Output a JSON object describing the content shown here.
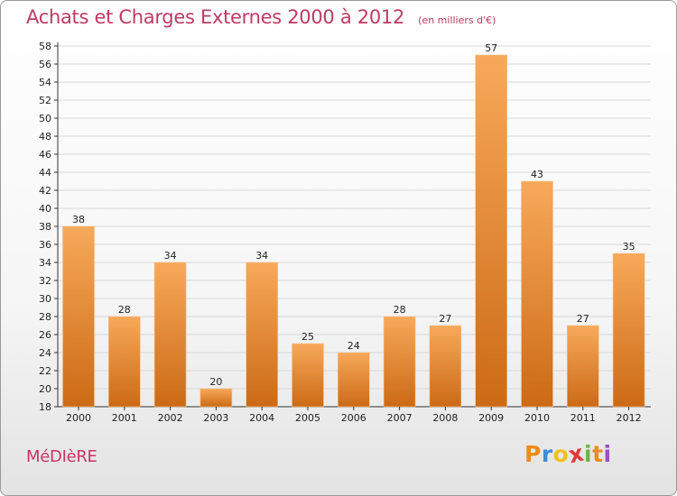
{
  "header": {
    "title": "Achats et Charges Externes 2000 à 2012",
    "subtitle": "(en milliers d'€)"
  },
  "footer": {
    "commune": "MéDIèRE",
    "logo_letters": [
      "P",
      "r",
      "o",
      "x",
      "i",
      "t",
      "i"
    ],
    "logo_colors": [
      "#f08a1c",
      "#3a8fd8",
      "#f0c020",
      "#e03a3a",
      "#6ab843",
      "#f08a1c",
      "#9b4fc4"
    ]
  },
  "colors": {
    "bar_top": "#f7a95a",
    "bar_bottom": "#cc6a15",
    "axis": "#333333",
    "grid": "#d8d8d8"
  },
  "chart_data": {
    "type": "bar",
    "categories": [
      "2000",
      "2001",
      "2002",
      "2003",
      "2004",
      "2005",
      "2006",
      "2007",
      "2008",
      "2009",
      "2010",
      "2011",
      "2012"
    ],
    "values": [
      38,
      28,
      34,
      20,
      34,
      25,
      24,
      28,
      27,
      57,
      43,
      27,
      35
    ],
    "data_labels": [
      "38",
      "28",
      "34",
      "20",
      "34",
      "25",
      "24",
      "28",
      "27",
      "57",
      "43",
      "27",
      "35"
    ],
    "title": "Achats et Charges Externes 2000 à 2012",
    "subtitle": "(en milliers d'€)",
    "ylim": [
      18,
      58
    ],
    "yticks": [
      18,
      20,
      22,
      24,
      26,
      28,
      30,
      32,
      34,
      36,
      38,
      40,
      42,
      44,
      46,
      48,
      50,
      52,
      54,
      56,
      58
    ],
    "grid": true,
    "legend": "none"
  }
}
